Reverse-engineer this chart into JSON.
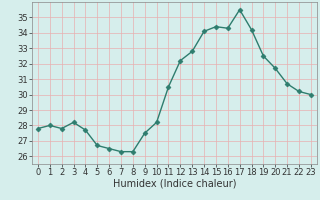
{
  "x": [
    0,
    1,
    2,
    3,
    4,
    5,
    6,
    7,
    8,
    9,
    10,
    11,
    12,
    13,
    14,
    15,
    16,
    17,
    18,
    19,
    20,
    21,
    22,
    23
  ],
  "y": [
    27.8,
    28.0,
    27.8,
    28.2,
    27.7,
    26.7,
    26.5,
    26.3,
    26.3,
    27.5,
    28.2,
    30.5,
    32.2,
    32.8,
    34.1,
    34.4,
    34.3,
    35.5,
    34.2,
    32.5,
    31.7,
    30.7,
    30.2,
    30.0
  ],
  "line_color": "#2e7d6e",
  "marker": "D",
  "marker_size": 2.5,
  "bg_color": "#d6eeec",
  "grid_color": "#e8b0b0",
  "xlabel": "Humidex (Indice chaleur)",
  "xlim": [
    -0.5,
    23.5
  ],
  "ylim": [
    25.5,
    36.0
  ],
  "yticks": [
    26,
    27,
    28,
    29,
    30,
    31,
    32,
    33,
    34,
    35
  ],
  "xticks": [
    0,
    1,
    2,
    3,
    4,
    5,
    6,
    7,
    8,
    9,
    10,
    11,
    12,
    13,
    14,
    15,
    16,
    17,
    18,
    19,
    20,
    21,
    22,
    23
  ],
  "tick_label_fontsize": 6.0,
  "xlabel_fontsize": 7.0,
  "spine_color": "#888888",
  "tick_color": "#333333",
  "line_width": 1.0
}
